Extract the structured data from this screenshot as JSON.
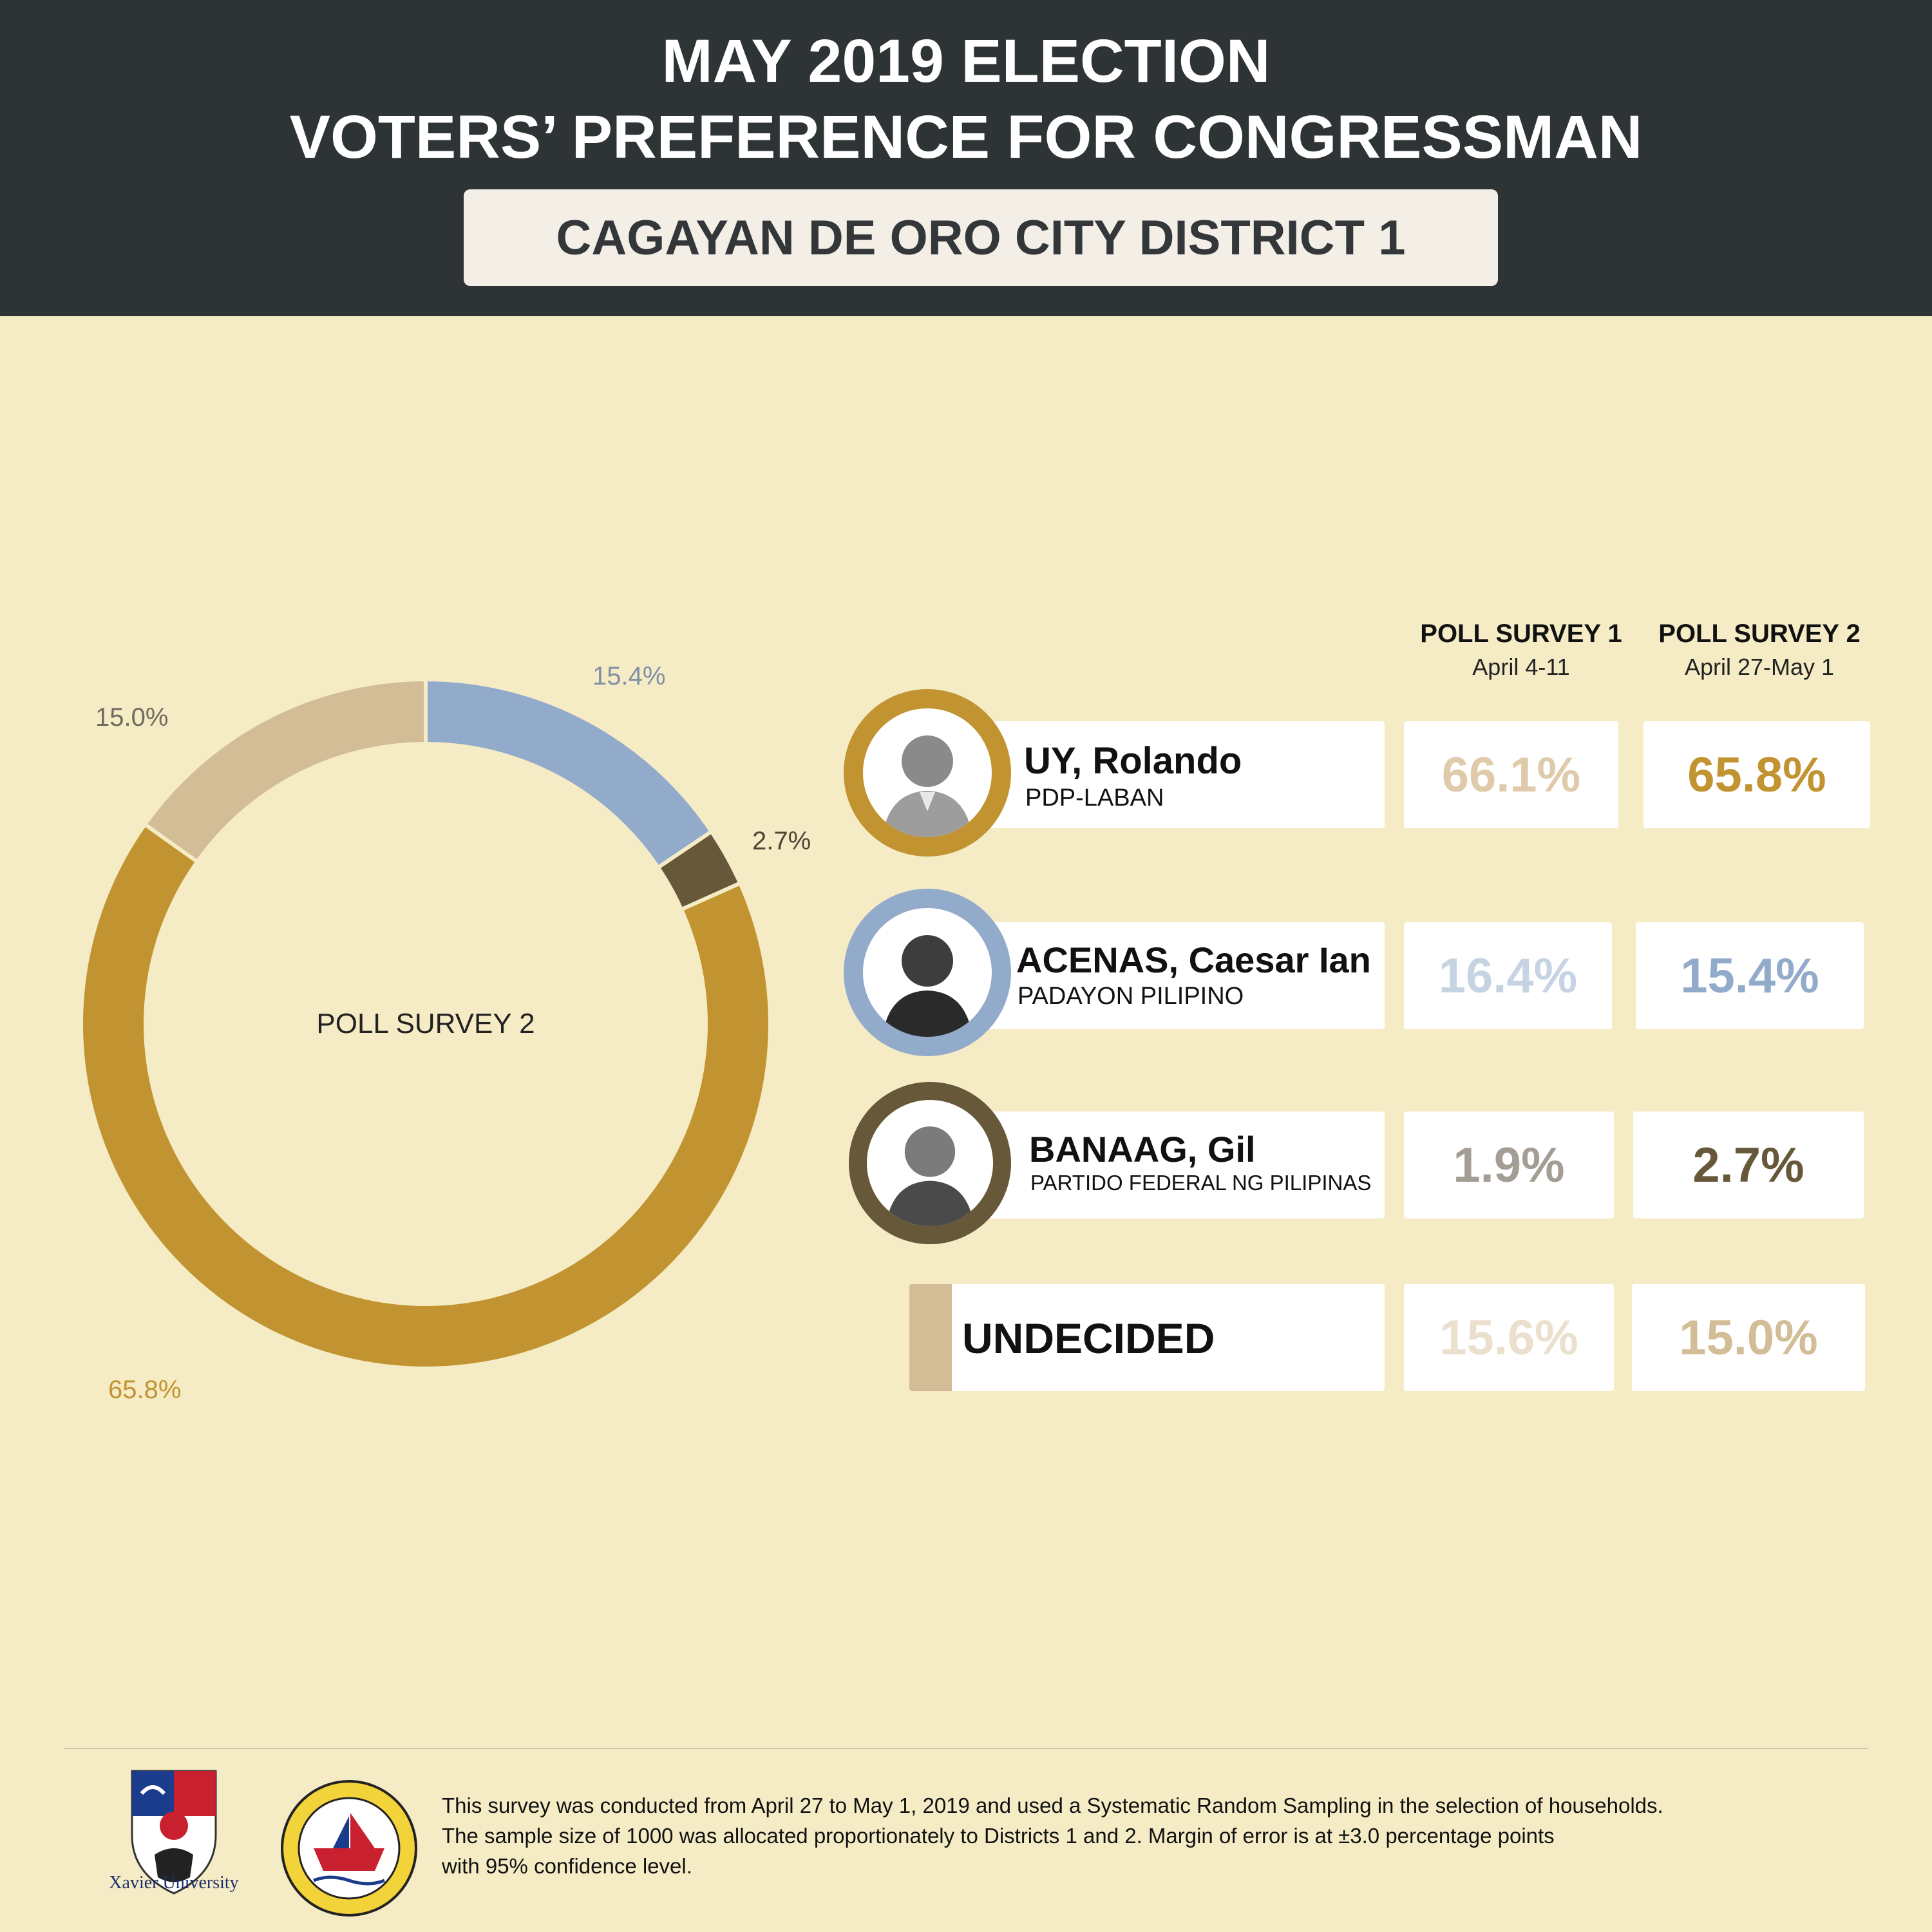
{
  "header": {
    "title_line1": "MAY 2019 ELECTION",
    "title_line2": "VOTERS’ PREFERENCE FOR CONGRESSMAN",
    "district": "CAGAYAN DE ORO CITY DISTRICT 1"
  },
  "columns": [
    {
      "title": "POLL SURVEY 1",
      "date": "April 4-11"
    },
    {
      "title": "POLL SURVEY 2",
      "date": "April 27-May 1"
    }
  ],
  "candidates": [
    {
      "name": "UY, Rolando",
      "party": "PDP-LABAN",
      "survey1": "66.1%",
      "survey2": "65.8%",
      "color": "#c29331",
      "color_light": "#dfcaaa",
      "avatar_icon": "portrait-icon"
    },
    {
      "name": "ACENAS, Caesar Ian",
      "party": "PADAYON PILIPINO",
      "survey1": "16.4%",
      "survey2": "15.4%",
      "color": "#93abcb",
      "color_light": "#c6d3e2",
      "avatar_icon": "portrait-icon"
    },
    {
      "name": "BANAAG, Gil",
      "party": "PARTIDO FEDERAL NG PILIPINAS",
      "survey1": "1.9%",
      "survey2": "2.7%",
      "color": "#665839",
      "color_light": "#a39d94",
      "avatar_icon": "portrait-icon"
    },
    {
      "name": "UNDECIDED",
      "party": "",
      "survey1": "15.6%",
      "survey2": "15.0%",
      "color": "#d2bd96",
      "color_light": "#ebdfcd"
    }
  ],
  "chart_data": {
    "type": "pie",
    "variant": "donut",
    "center_label": "POLL SURVEY 2",
    "slices": [
      {
        "value": 15.4,
        "label": "15.4%",
        "color": "#93abcb"
      },
      {
        "value": 2.7,
        "label": "2.7%",
        "color": "#665839"
      },
      {
        "value": 65.8,
        "label": "65.8%",
        "color": "#c29331"
      },
      {
        "value": 15.0,
        "label": "15.0%",
        "color": "#d2bd96"
      }
    ],
    "label_colors": [
      "#7f8fa6",
      "#4e4535",
      "#c29331",
      "#6e6a5e"
    ]
  },
  "footer": {
    "note_lines": [
      "This survey was conducted from April 27 to May 1, 2019 and used a Systematic Random Sampling in the selection of households.",
      "The sample size of 1000 was allocated proportionately to Districts 1 and 2. Margin of error is at ±3.0 percentage points",
      "with 95% confidence level."
    ],
    "logo1_text": "Xavier University",
    "logo1_icon": "xavier-university-shield-icon",
    "logo2_icon": "research-office-seal-icon"
  }
}
